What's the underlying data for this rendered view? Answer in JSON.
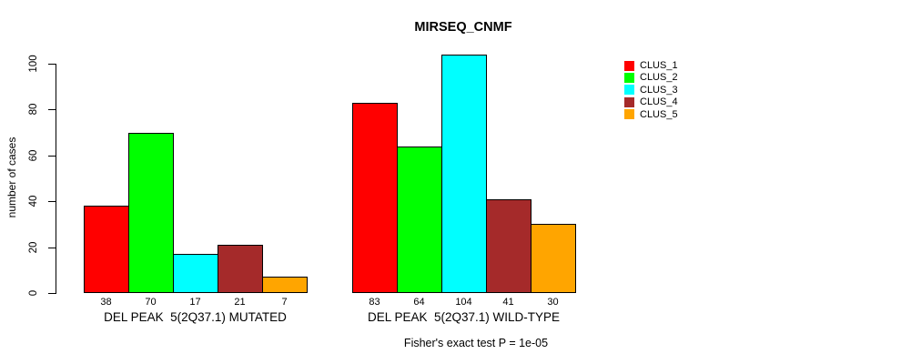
{
  "title": "MIRSEQ_CNMF",
  "chart_data": {
    "type": "bar",
    "title": "MIRSEQ_CNMF",
    "xlabel": "",
    "ylabel": "number of cases",
    "ylim": [
      0,
      104
    ],
    "yticks": [
      0,
      20,
      40,
      60,
      80,
      100
    ],
    "grid": false,
    "legend_position": "right",
    "bar_border_color": "#000000",
    "series": [
      {
        "name": "CLUS_1",
        "color": "#ff0000"
      },
      {
        "name": "CLUS_2",
        "color": "#00ff00"
      },
      {
        "name": "CLUS_3",
        "color": "#00ffff"
      },
      {
        "name": "CLUS_4",
        "color": "#a52a2a"
      },
      {
        "name": "CLUS_5",
        "color": "#ffa500"
      }
    ],
    "groups": [
      {
        "label": "DEL PEAK  5(2Q37.1) MUTATED",
        "values": [
          38,
          70,
          17,
          21,
          7
        ]
      },
      {
        "label": "DEL PEAK  5(2Q37.1) WILD-TYPE",
        "values": [
          83,
          64,
          104,
          41,
          30
        ]
      }
    ],
    "caption": "Fisher's exact test P = 1e-05"
  }
}
